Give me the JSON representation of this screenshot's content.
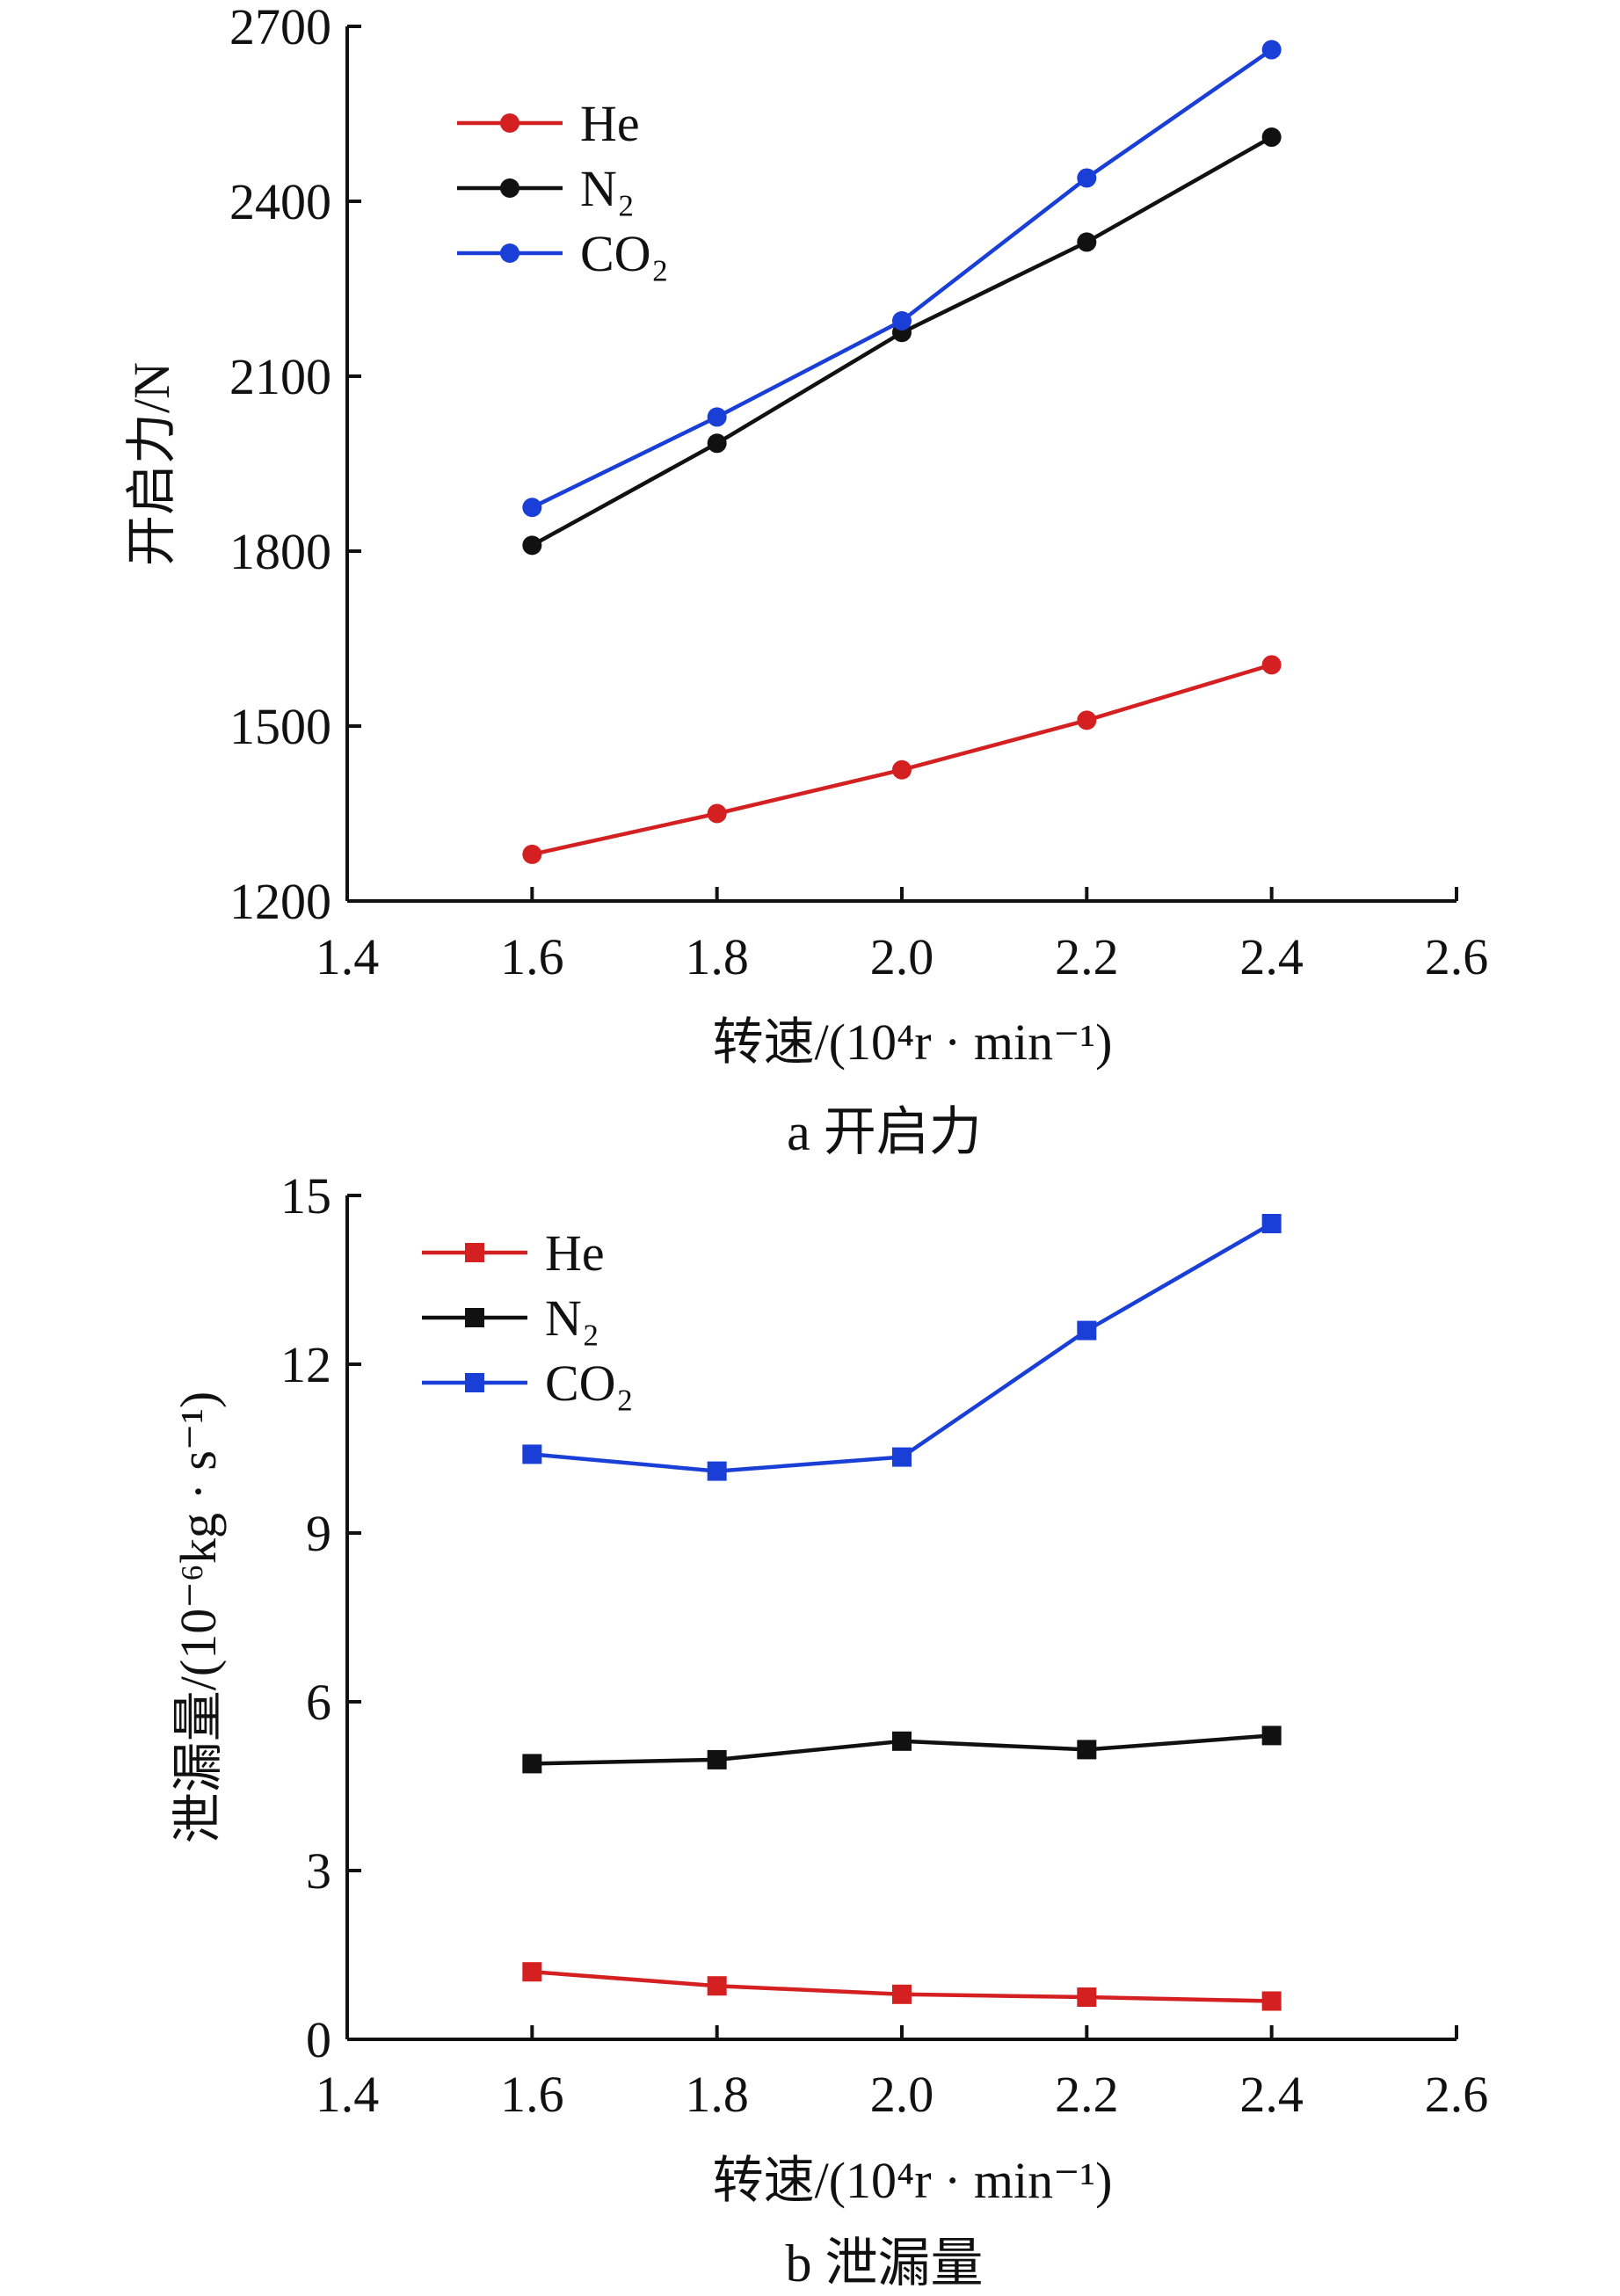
{
  "chart_data": [
    {
      "type": "line",
      "caption": "a 开启力",
      "xlabel": "转速/(10⁴r · min⁻¹)",
      "ylabel": "开启力/N",
      "xlim": [
        1.4,
        2.6
      ],
      "ylim": [
        1200,
        2700
      ],
      "xticks": [
        "1.4",
        "1.6",
        "1.8",
        "2.0",
        "2.2",
        "2.4",
        "2.6"
      ],
      "yticks": [
        "1200",
        "1500",
        "1800",
        "2100",
        "2400",
        "2700"
      ],
      "x": [
        1.6,
        1.8,
        2.0,
        2.2,
        2.4
      ],
      "marker": "circle",
      "legend_position": "top-left",
      "series": [
        {
          "name": "He",
          "color": "#d42020",
          "values": [
            1280,
            1350,
            1425,
            1510,
            1605
          ]
        },
        {
          "name": "N₂",
          "color": "#111111",
          "values": [
            1810,
            1985,
            2175,
            2330,
            2510
          ]
        },
        {
          "name": "CO₂",
          "color": "#1a3fd6",
          "values": [
            1875,
            2030,
            2195,
            2440,
            2660
          ]
        }
      ]
    },
    {
      "type": "line",
      "caption": "b 泄漏量",
      "xlabel": "转速/(10⁴r · min⁻¹)",
      "ylabel": "泄漏量/(10⁻⁶kg · s⁻¹)",
      "xlim": [
        1.4,
        2.6
      ],
      "ylim": [
        0,
        15
      ],
      "xticks": [
        "1.4",
        "1.6",
        "1.8",
        "2.0",
        "2.2",
        "2.4",
        "2.6"
      ],
      "yticks": [
        "0",
        "3",
        "6",
        "9",
        "12",
        "15"
      ],
      "x": [
        1.6,
        1.8,
        2.0,
        2.2,
        2.4
      ],
      "marker": "square",
      "legend_position": "top-left",
      "series": [
        {
          "name": "He",
          "color": "#d42020",
          "values": [
            1.2,
            0.95,
            0.8,
            0.75,
            0.68
          ]
        },
        {
          "name": "N₂",
          "color": "#111111",
          "values": [
            4.9,
            4.97,
            5.3,
            5.15,
            5.4
          ]
        },
        {
          "name": "CO₂",
          "color": "#1a3fd6",
          "values": [
            10.4,
            10.1,
            10.35,
            12.6,
            14.5
          ]
        }
      ]
    }
  ]
}
